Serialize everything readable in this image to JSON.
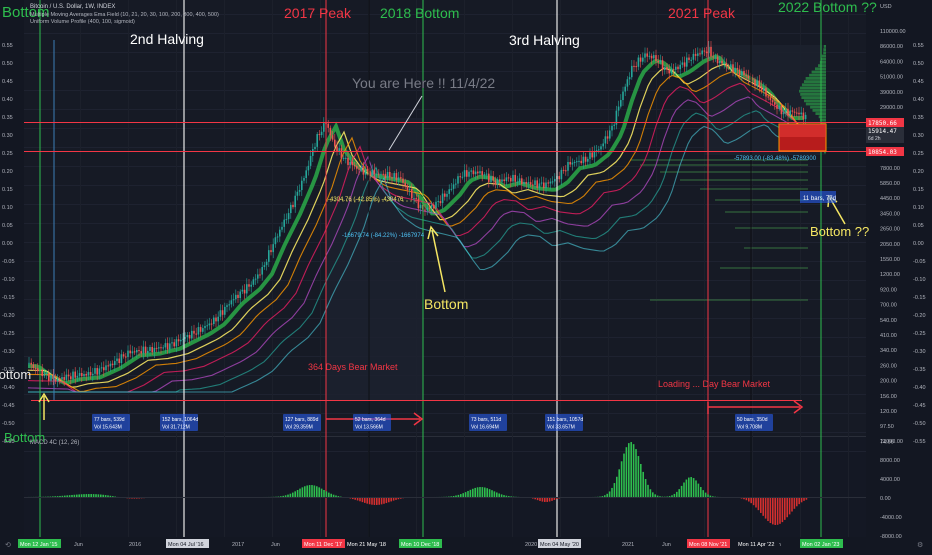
{
  "header": {
    "symbol_line": "Bitcoin / U.S. Dollar, 1W, INDEX",
    "indicator_1": "Multiple Moving Averages Ema Field (10, 21, 20, 30, 100, 200, 300, 400, 500)",
    "indicator_2": "Uniform Volume Profile (400, 100, sigmoid)"
  },
  "annotations": {
    "top_left": "Bottom",
    "bottom_left": "Bottom",
    "halving_2": "2nd Halving",
    "halving_3": "3rd Halving",
    "peak_2017": "2017 Peak",
    "bottom_2018": "2018 Bottom",
    "peak_2021": "2021 Peak",
    "bottom_2022": "2022 Bottom ??",
    "you_are_here": "You are Here !! 11/4/22",
    "bottom_mid": "Bottom",
    "bottom_right": "Bottom ??",
    "bear_2018": "364 Days Bear Market",
    "bear_2022": "Loading ... Day Bear Market",
    "measure_2017": "-4304.76 (-42.85%) -430476",
    "measure_2018": "-16679.74 (-84.22%) -1667974",
    "measure_2022": "-57893.00 (-83.48%) -5789300",
    "bars_box_2022": "11 bars, 77d"
  },
  "stat_boxes": [
    {
      "line1": "77 bars, 539d",
      "line2": "Vol 15.643M"
    },
    {
      "line1": "152 bars, 1064d",
      "line2": "Vol 31.712M"
    },
    {
      "line1": "127 bars, 889d",
      "line2": "Vol 29.359M"
    },
    {
      "line1": "52 bars, 364d",
      "line2": "Vol 13.566M"
    },
    {
      "line1": "73 bars, 511d",
      "line2": "Vol 16.694M"
    },
    {
      "line1": "151 bars, 1057d",
      "line2": "Vol 33.657M"
    },
    {
      "line1": "50 bars, 350d",
      "line2": "Vol 9.708M"
    }
  ],
  "price_axis": {
    "currency": "USD",
    "labels": [
      "110000.00",
      "86000.00",
      "64000.00",
      "51000.00",
      "39000.00",
      "29000.00",
      "22000.00",
      "17000.00",
      "10000.00",
      "7800.00",
      "5850.00",
      "4450.00",
      "3450.00",
      "2650.00",
      "2050.00",
      "1550.00",
      "1200.00",
      "920.00",
      "700.00",
      "540.00",
      "410.00",
      "340.00",
      "260.00",
      "200.00",
      "156.00",
      "120.00",
      "97.50",
      "74.00"
    ],
    "tag_upper": "17850.66",
    "tag_current": "15914.47",
    "tag_current_sub": "6d 2h",
    "tag_lower": "10854.03"
  },
  "percent_axis": {
    "left_labels": [
      "0.55",
      "0.50",
      "0.45",
      "0.40",
      "0.35",
      "0.30",
      "0.25",
      "0.20",
      "0.15",
      "0.10",
      "0.05",
      "0.00",
      "-0.05",
      "-0.10",
      "-0.15",
      "-0.20",
      "-0.25",
      "-0.30",
      "-0.35",
      "-0.40",
      "-0.45",
      "-0.50",
      "-0.55"
    ],
    "right_labels": [
      "0.55",
      "0.50",
      "0.45",
      "0.40",
      "0.35",
      "0.30",
      "0.25",
      "0.20",
      "0.15",
      "0.10",
      "0.05",
      "0.00",
      "-0.05",
      "-0.10",
      "-0.15",
      "-0.20",
      "-0.25",
      "-0.30",
      "-0.35",
      "-0.40",
      "-0.45",
      "-0.50",
      "-0.55"
    ]
  },
  "macd": {
    "title": "MACD 4C (12, 26)",
    "axis_labels": [
      "12000.00",
      "8000.00",
      "4000.00",
      "0.00",
      "-4000.00",
      "-8000.00"
    ]
  },
  "time_axis": {
    "labels": [
      "Jun",
      "2016",
      "Jun",
      "2017",
      "Jun",
      "2019",
      "Jun",
      "2020",
      "2021",
      "Jun",
      "Jun",
      "Jun"
    ],
    "highlights": [
      {
        "text": "Mon 12 Jan '15",
        "color": "#2ebd4e"
      },
      {
        "text": "Mon 04 Jul '16",
        "color": "#d1d4dc"
      },
      {
        "text": "Mon 11 Dec '17",
        "color": "#f23645"
      },
      {
        "text": "Mon 21 May '18",
        "color": "#131722"
      },
      {
        "text": "Mon 10 Dec '18",
        "color": "#2ebd4e"
      },
      {
        "text": "Mon 04 May '20",
        "color": "#d1d4dc"
      },
      {
        "text": "Mon 08 Nov '21",
        "color": "#f23645"
      },
      {
        "text": "Mon 11 Apr '22",
        "color": "#131722"
      },
      {
        "text": "Mon 02 Jan '23",
        "color": "#2ebd4e"
      }
    ]
  },
  "colors": {
    "background": "#131722",
    "green_line": "#2ebd4e",
    "red_line": "#f23645",
    "annotation_yellow": "#f5e663",
    "white_line": "#e8e8e8"
  }
}
